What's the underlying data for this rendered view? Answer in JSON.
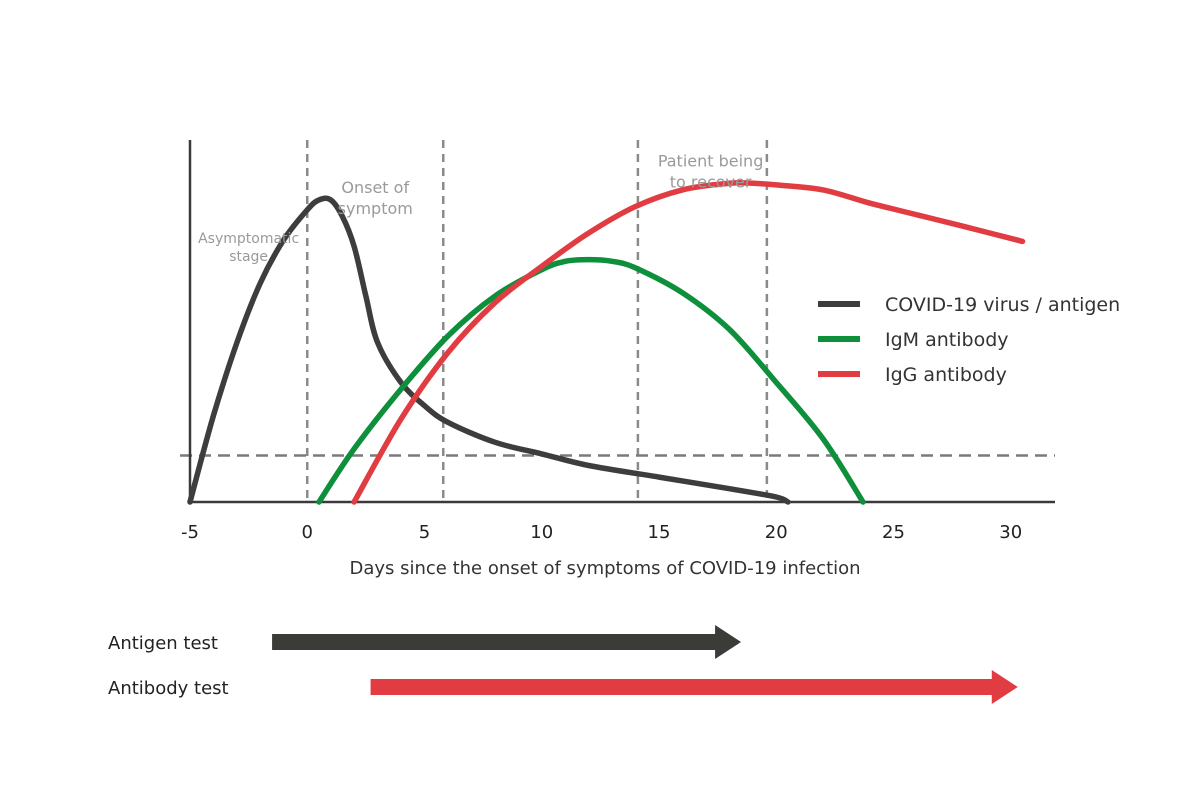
{
  "chart_data": {
    "type": "line",
    "title": "",
    "xlabel": "Days since the onset of symptoms of COVID-19 infection",
    "ylabel": "",
    "xlim": [
      -5,
      32
    ],
    "ylim": [
      0,
      100
    ],
    "x_ticks": [
      -5,
      0,
      5,
      10,
      15,
      20,
      25,
      30
    ],
    "grid": false,
    "legend_position": "right",
    "threshold_level": 14,
    "series": [
      {
        "name": "COVID-19 virus / antigen",
        "color": "#3d3d3d",
        "points": [
          [
            -5,
            0
          ],
          [
            -4,
            26
          ],
          [
            -3,
            48
          ],
          [
            -2,
            66
          ],
          [
            -1,
            79
          ],
          [
            0,
            88
          ],
          [
            0.5,
            91
          ],
          [
            1,
            91
          ],
          [
            1.5,
            86
          ],
          [
            2,
            77
          ],
          [
            2.5,
            62
          ],
          [
            3,
            48
          ],
          [
            4,
            36
          ],
          [
            5,
            29
          ],
          [
            6,
            24
          ],
          [
            8,
            18
          ],
          [
            10,
            14.5
          ],
          [
            12,
            11
          ],
          [
            15,
            7.5
          ],
          [
            18,
            4
          ],
          [
            20,
            1.5
          ],
          [
            20.5,
            0
          ]
        ]
      },
      {
        "name": "IgM antibody",
        "color": "#0e8f3c",
        "points": [
          [
            0.5,
            0
          ],
          [
            2,
            16
          ],
          [
            4,
            34
          ],
          [
            6,
            50
          ],
          [
            8,
            62
          ],
          [
            10,
            70
          ],
          [
            11,
            72.5
          ],
          [
            12,
            73
          ],
          [
            13,
            72.5
          ],
          [
            14,
            70.5
          ],
          [
            16,
            63
          ],
          [
            18,
            52
          ],
          [
            20,
            36
          ],
          [
            22,
            19
          ],
          [
            23.7,
            0
          ]
        ]
      },
      {
        "name": "IgG antibody",
        "color": "#e03c41",
        "points": [
          [
            2,
            0
          ],
          [
            4,
            25
          ],
          [
            6,
            45
          ],
          [
            8,
            60
          ],
          [
            10,
            71
          ],
          [
            12,
            81
          ],
          [
            14,
            89
          ],
          [
            16,
            94
          ],
          [
            18,
            96
          ],
          [
            19,
            96
          ],
          [
            20,
            95.5
          ],
          [
            22,
            94
          ],
          [
            24,
            90
          ],
          [
            26,
            86.5
          ],
          [
            28,
            83
          ],
          [
            30.5,
            78.5
          ]
        ]
      }
    ],
    "phase_markers": [
      {
        "x": 0,
        "label_lines": []
      },
      {
        "x": 5.8,
        "label_lines": []
      },
      {
        "x": 14.1,
        "label_lines": []
      },
      {
        "x": 19.6,
        "label_lines": []
      }
    ],
    "annotations": [
      {
        "lines": [
          "Asymptomatic",
          "stage"
        ],
        "x": -2.5,
        "y": 78
      },
      {
        "lines": [
          "Onset of",
          "symptom"
        ],
        "x": 2.9,
        "y": 93
      },
      {
        "lines": [
          "Patient being",
          "to recover"
        ],
        "x": 17.2,
        "y": 101
      }
    ],
    "tests": [
      {
        "label": "Antigen test",
        "color": "#3b3b37",
        "start": -1.5,
        "end": 18.5
      },
      {
        "label": "Antibody test",
        "color": "#e03c41",
        "start": 2.7,
        "end": 30.3
      }
    ]
  }
}
